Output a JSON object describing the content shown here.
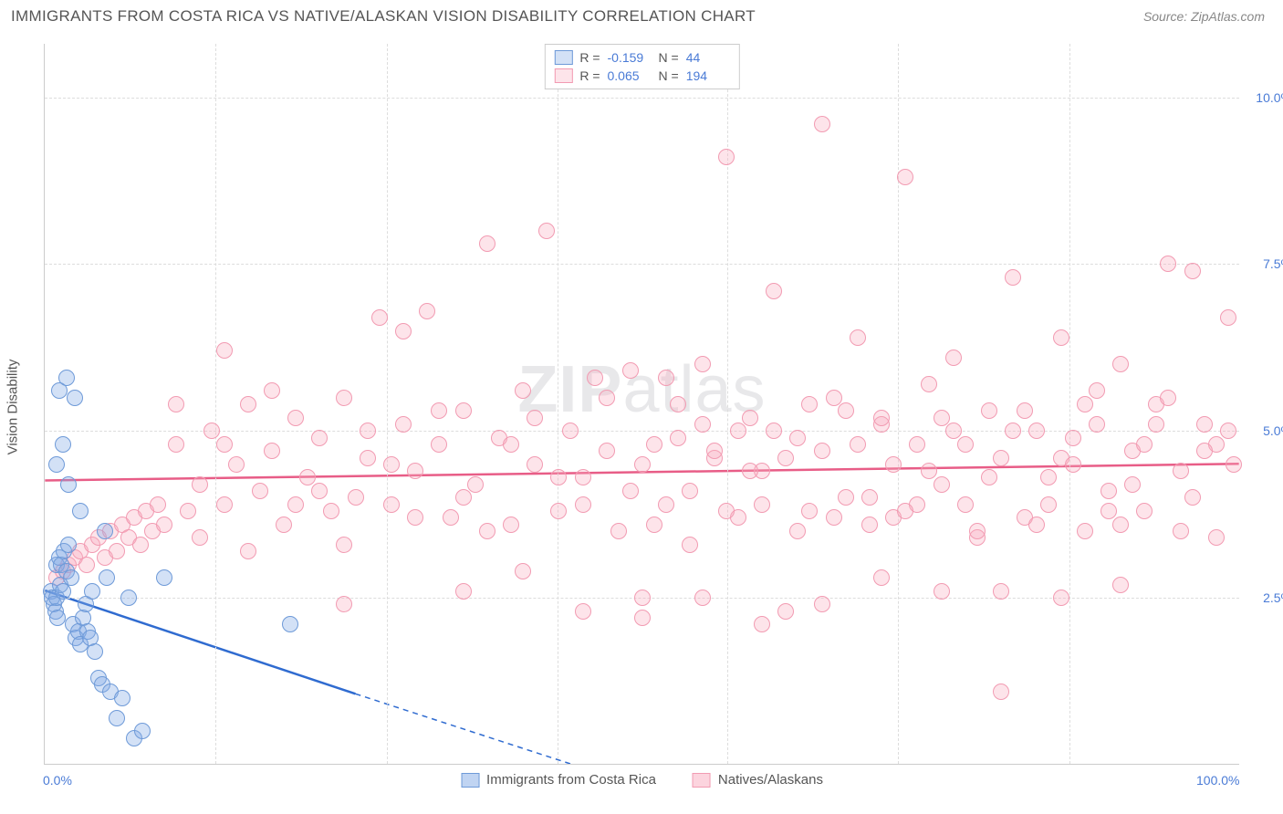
{
  "header": {
    "title": "IMMIGRANTS FROM COSTA RICA VS NATIVE/ALASKAN VISION DISABILITY CORRELATION CHART",
    "source_prefix": "Source: ",
    "source": "ZipAtlas.com"
  },
  "chart": {
    "type": "scatter",
    "watermark": "ZIPatlas",
    "y_axis_title": "Vision Disability",
    "xlim": [
      0,
      100
    ],
    "ylim": [
      0,
      10.8
    ],
    "x_ticks": [
      0,
      100
    ],
    "x_tick_labels": [
      "0.0%",
      "100.0%"
    ],
    "x_minor_ticks": [
      14.3,
      28.6,
      42.9,
      57.1,
      71.4,
      85.7
    ],
    "y_ticks": [
      2.5,
      5.0,
      7.5,
      10.0
    ],
    "y_tick_labels": [
      "2.5%",
      "5.0%",
      "7.5%",
      "10.0%"
    ],
    "background_color": "#ffffff",
    "grid_color": "#dddddd",
    "axis_color": "#cccccc",
    "label_color": "#4a7bd6",
    "title_color": "#555555",
    "marker_radius": 9,
    "marker_stroke_width": 1.5,
    "series": [
      {
        "name": "Immigrants from Costa Rica",
        "fill": "rgba(130,170,230,0.35)",
        "stroke": "#6e9ad8",
        "line_color": "#2f6bd0",
        "R": "-0.159",
        "N": "44",
        "trend": {
          "x1": 0,
          "y1": 2.6,
          "x2_solid": 26,
          "y2_solid": 1.05,
          "x2_dash": 44,
          "y2_dash": 0
        },
        "points": [
          [
            0.5,
            2.6
          ],
          [
            0.6,
            2.5
          ],
          [
            0.8,
            2.4
          ],
          [
            0.9,
            2.3
          ],
          [
            1.0,
            2.5
          ],
          [
            1.1,
            2.2
          ],
          [
            1.3,
            2.7
          ],
          [
            1.5,
            2.6
          ],
          [
            1.0,
            3.0
          ],
          [
            1.2,
            3.1
          ],
          [
            1.4,
            3.0
          ],
          [
            1.6,
            3.2
          ],
          [
            1.8,
            2.9
          ],
          [
            2.0,
            3.3
          ],
          [
            2.2,
            2.8
          ],
          [
            2.4,
            2.1
          ],
          [
            2.6,
            1.9
          ],
          [
            2.8,
            2.0
          ],
          [
            3.0,
            1.8
          ],
          [
            3.2,
            2.2
          ],
          [
            3.4,
            2.4
          ],
          [
            3.6,
            2.0
          ],
          [
            3.8,
            1.9
          ],
          [
            4.0,
            2.6
          ],
          [
            4.2,
            1.7
          ],
          [
            4.5,
            1.3
          ],
          [
            4.8,
            1.2
          ],
          [
            5.2,
            2.8
          ],
          [
            5.5,
            1.1
          ],
          [
            6.0,
            0.7
          ],
          [
            6.5,
            1.0
          ],
          [
            7.0,
            2.5
          ],
          [
            7.5,
            0.4
          ],
          [
            8.2,
            0.5
          ],
          [
            10.0,
            2.8
          ],
          [
            1.0,
            4.5
          ],
          [
            1.2,
            5.6
          ],
          [
            1.5,
            4.8
          ],
          [
            1.8,
            5.8
          ],
          [
            2.0,
            4.2
          ],
          [
            2.5,
            5.5
          ],
          [
            3.0,
            3.8
          ],
          [
            20.5,
            2.1
          ],
          [
            5.0,
            3.5
          ]
        ]
      },
      {
        "name": "Natives/Alaskans",
        "fill": "rgba(250,170,190,0.32)",
        "stroke": "#f29bb2",
        "line_color": "#e85d87",
        "R": "0.065",
        "N": "194",
        "trend": {
          "x1": 0,
          "y1": 4.25,
          "x2_solid": 100,
          "y2_solid": 4.5,
          "x2_dash": 100,
          "y2_dash": 4.5
        },
        "points": [
          [
            1,
            2.8
          ],
          [
            1.5,
            2.9
          ],
          [
            2,
            3.0
          ],
          [
            2.5,
            3.1
          ],
          [
            3,
            3.2
          ],
          [
            3.5,
            3.0
          ],
          [
            4,
            3.3
          ],
          [
            4.5,
            3.4
          ],
          [
            5,
            3.1
          ],
          [
            5.5,
            3.5
          ],
          [
            6,
            3.2
          ],
          [
            6.5,
            3.6
          ],
          [
            7,
            3.4
          ],
          [
            7.5,
            3.7
          ],
          [
            8,
            3.3
          ],
          [
            8.5,
            3.8
          ],
          [
            9,
            3.5
          ],
          [
            9.5,
            3.9
          ],
          [
            10,
            3.6
          ],
          [
            11,
            4.8
          ],
          [
            12,
            3.8
          ],
          [
            13,
            4.2
          ],
          [
            14,
            5.0
          ],
          [
            15,
            3.9
          ],
          [
            16,
            4.5
          ],
          [
            17,
            5.4
          ],
          [
            18,
            4.1
          ],
          [
            19,
            4.7
          ],
          [
            20,
            3.6
          ],
          [
            21,
            5.2
          ],
          [
            22,
            4.3
          ],
          [
            23,
            4.9
          ],
          [
            24,
            3.8
          ],
          [
            25,
            5.5
          ],
          [
            26,
            4.0
          ],
          [
            27,
            4.6
          ],
          [
            28,
            6.7
          ],
          [
            29,
            3.9
          ],
          [
            30,
            5.1
          ],
          [
            31,
            4.4
          ],
          [
            32,
            6.8
          ],
          [
            33,
            4.8
          ],
          [
            34,
            3.7
          ],
          [
            35,
            5.3
          ],
          [
            36,
            4.2
          ],
          [
            37,
            7.8
          ],
          [
            38,
            4.9
          ],
          [
            39,
            3.6
          ],
          [
            40,
            5.6
          ],
          [
            41,
            4.5
          ],
          [
            42,
            8.0
          ],
          [
            43,
            3.8
          ],
          [
            44,
            5.0
          ],
          [
            45,
            4.3
          ],
          [
            46,
            5.8
          ],
          [
            47,
            4.7
          ],
          [
            48,
            3.5
          ],
          [
            49,
            5.9
          ],
          [
            50,
            2.2
          ],
          [
            51,
            4.8
          ],
          [
            52,
            3.9
          ],
          [
            53,
            5.4
          ],
          [
            54,
            4.1
          ],
          [
            55,
            6.0
          ],
          [
            56,
            4.6
          ],
          [
            57,
            9.1
          ],
          [
            58,
            3.7
          ],
          [
            59,
            5.2
          ],
          [
            60,
            4.4
          ],
          [
            61,
            7.1
          ],
          [
            62,
            2.3
          ],
          [
            63,
            4.9
          ],
          [
            64,
            3.8
          ],
          [
            65,
            9.6
          ],
          [
            66,
            5.5
          ],
          [
            67,
            4.0
          ],
          [
            68,
            6.4
          ],
          [
            69,
            3.6
          ],
          [
            70,
            5.1
          ],
          [
            71,
            4.5
          ],
          [
            72,
            8.8
          ],
          [
            73,
            3.9
          ],
          [
            74,
            5.7
          ],
          [
            75,
            4.2
          ],
          [
            76,
            6.1
          ],
          [
            77,
            4.8
          ],
          [
            78,
            3.4
          ],
          [
            79,
            5.3
          ],
          [
            80,
            4.6
          ],
          [
            81,
            7.3
          ],
          [
            82,
            3.7
          ],
          [
            83,
            5.0
          ],
          [
            84,
            4.3
          ],
          [
            85,
            6.4
          ],
          [
            86,
            4.9
          ],
          [
            87,
            3.5
          ],
          [
            88,
            5.6
          ],
          [
            89,
            4.1
          ],
          [
            90,
            6.0
          ],
          [
            91,
            4.7
          ],
          [
            92,
            3.8
          ],
          [
            93,
            5.4
          ],
          [
            94,
            7.5
          ],
          [
            95,
            4.4
          ],
          [
            96,
            7.4
          ],
          [
            97,
            5.1
          ],
          [
            98,
            4.8
          ],
          [
            99,
            5.0
          ],
          [
            99.5,
            4.5
          ],
          [
            11,
            5.4
          ],
          [
            13,
            3.4
          ],
          [
            15,
            4.8
          ],
          [
            17,
            3.2
          ],
          [
            19,
            5.6
          ],
          [
            21,
            3.9
          ],
          [
            23,
            4.1
          ],
          [
            25,
            3.3
          ],
          [
            27,
            5.0
          ],
          [
            29,
            4.5
          ],
          [
            31,
            3.7
          ],
          [
            33,
            5.3
          ],
          [
            35,
            4.0
          ],
          [
            37,
            3.5
          ],
          [
            39,
            4.8
          ],
          [
            41,
            5.2
          ],
          [
            43,
            4.3
          ],
          [
            45,
            3.9
          ],
          [
            47,
            5.5
          ],
          [
            49,
            4.1
          ],
          [
            51,
            3.6
          ],
          [
            53,
            4.9
          ],
          [
            55,
            5.1
          ],
          [
            57,
            3.8
          ],
          [
            59,
            4.4
          ],
          [
            61,
            5.0
          ],
          [
            63,
            3.5
          ],
          [
            65,
            4.7
          ],
          [
            67,
            5.3
          ],
          [
            69,
            4.0
          ],
          [
            71,
            3.7
          ],
          [
            73,
            4.8
          ],
          [
            75,
            5.2
          ],
          [
            77,
            3.9
          ],
          [
            79,
            4.3
          ],
          [
            81,
            5.0
          ],
          [
            83,
            3.6
          ],
          [
            85,
            4.6
          ],
          [
            87,
            5.4
          ],
          [
            89,
            3.8
          ],
          [
            91,
            4.2
          ],
          [
            93,
            5.1
          ],
          [
            95,
            3.5
          ],
          [
            97,
            4.7
          ],
          [
            99,
            6.7
          ],
          [
            50,
            4.5
          ],
          [
            52,
            5.8
          ],
          [
            54,
            3.3
          ],
          [
            56,
            4.7
          ],
          [
            58,
            5.0
          ],
          [
            60,
            3.9
          ],
          [
            62,
            4.6
          ],
          [
            64,
            5.4
          ],
          [
            66,
            3.7
          ],
          [
            68,
            4.8
          ],
          [
            70,
            5.2
          ],
          [
            72,
            3.8
          ],
          [
            74,
            4.4
          ],
          [
            76,
            5.0
          ],
          [
            78,
            3.5
          ],
          [
            80,
            1.1
          ],
          [
            82,
            5.3
          ],
          [
            84,
            3.9
          ],
          [
            86,
            4.5
          ],
          [
            88,
            5.1
          ],
          [
            90,
            3.6
          ],
          [
            92,
            4.8
          ],
          [
            94,
            5.5
          ],
          [
            96,
            4.0
          ],
          [
            98,
            3.4
          ],
          [
            50,
            2.5
          ],
          [
            30,
            6.5
          ],
          [
            40,
            2.9
          ],
          [
            60,
            2.1
          ],
          [
            70,
            2.8
          ],
          [
            80,
            2.6
          ],
          [
            90,
            2.7
          ],
          [
            15,
            6.2
          ],
          [
            25,
            2.4
          ],
          [
            35,
            2.6
          ],
          [
            45,
            2.3
          ],
          [
            55,
            2.5
          ],
          [
            65,
            2.4
          ],
          [
            75,
            2.6
          ],
          [
            85,
            2.5
          ]
        ]
      }
    ],
    "legend_bottom": [
      {
        "label": "Immigrants from Costa Rica",
        "fill": "rgba(130,170,230,0.5)",
        "stroke": "#6e9ad8"
      },
      {
        "label": "Natives/Alaskans",
        "fill": "rgba(250,170,190,0.5)",
        "stroke": "#f29bb2"
      }
    ]
  }
}
